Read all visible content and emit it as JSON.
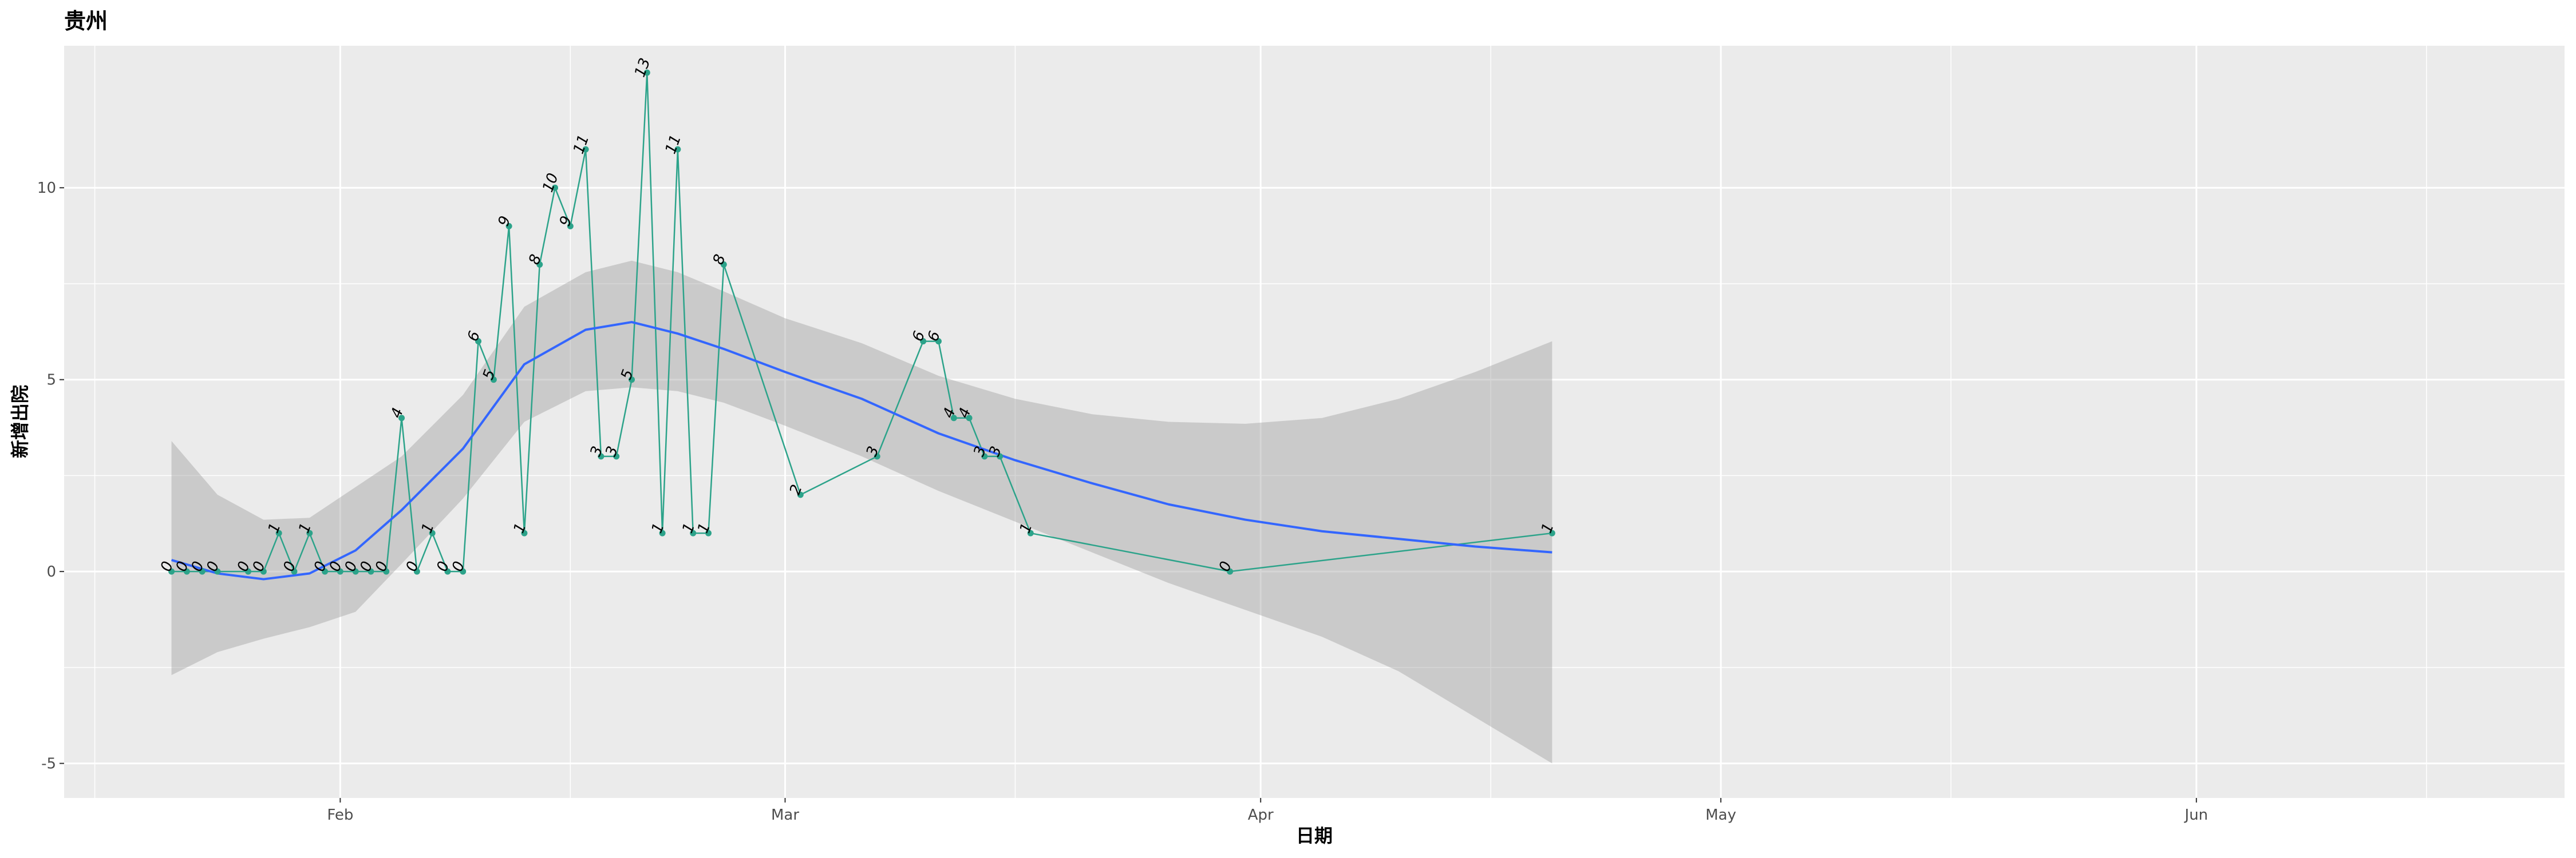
{
  "chart_data": {
    "type": "line",
    "title": "贵州",
    "xlabel": "日期",
    "ylabel": "新增出院",
    "x_ticks": [
      "Feb",
      "Mar",
      "Apr",
      "May",
      "Jun"
    ],
    "y_ticks": [
      -5,
      0,
      5,
      10
    ],
    "xlim": [
      "2020-01-14",
      "2020-06-25"
    ],
    "ylim": [
      -5.9,
      13.7
    ],
    "series": [
      {
        "type": "line+points+labels",
        "color": "#2ca38a",
        "points": [
          {
            "x": "2020-01-21",
            "y": 0
          },
          {
            "x": "2020-01-22",
            "y": 0
          },
          {
            "x": "2020-01-23",
            "y": 0
          },
          {
            "x": "2020-01-24",
            "y": 0
          },
          {
            "x": "2020-01-26",
            "y": 0
          },
          {
            "x": "2020-01-27",
            "y": 0
          },
          {
            "x": "2020-01-28",
            "y": 1
          },
          {
            "x": "2020-01-29",
            "y": 0
          },
          {
            "x": "2020-01-30",
            "y": 1
          },
          {
            "x": "2020-01-31",
            "y": 0
          },
          {
            "x": "2020-02-01",
            "y": 0
          },
          {
            "x": "2020-02-02",
            "y": 0
          },
          {
            "x": "2020-02-03",
            "y": 0
          },
          {
            "x": "2020-02-04",
            "y": 0
          },
          {
            "x": "2020-02-05",
            "y": 4
          },
          {
            "x": "2020-02-06",
            "y": 0
          },
          {
            "x": "2020-02-07",
            "y": 1
          },
          {
            "x": "2020-02-08",
            "y": 0
          },
          {
            "x": "2020-02-09",
            "y": 0
          },
          {
            "x": "2020-02-10",
            "y": 6
          },
          {
            "x": "2020-02-11",
            "y": 5
          },
          {
            "x": "2020-02-12",
            "y": 9
          },
          {
            "x": "2020-02-13",
            "y": 1
          },
          {
            "x": "2020-02-14",
            "y": 8
          },
          {
            "x": "2020-02-15",
            "y": 10
          },
          {
            "x": "2020-02-16",
            "y": 9
          },
          {
            "x": "2020-02-17",
            "y": 11
          },
          {
            "x": "2020-02-18",
            "y": 3
          },
          {
            "x": "2020-02-19",
            "y": 3
          },
          {
            "x": "2020-02-20",
            "y": 5
          },
          {
            "x": "2020-02-21",
            "y": 13
          },
          {
            "x": "2020-02-22",
            "y": 1
          },
          {
            "x": "2020-02-23",
            "y": 11
          },
          {
            "x": "2020-02-24",
            "y": 1
          },
          {
            "x": "2020-02-25",
            "y": 1
          },
          {
            "x": "2020-02-26",
            "y": 8
          },
          {
            "x": "2020-03-02",
            "y": 2
          },
          {
            "x": "2020-03-07",
            "y": 3
          },
          {
            "x": "2020-03-10",
            "y": 6
          },
          {
            "x": "2020-03-11",
            "y": 6
          },
          {
            "x": "2020-03-12",
            "y": 4
          },
          {
            "x": "2020-03-13",
            "y": 4
          },
          {
            "x": "2020-03-14",
            "y": 3
          },
          {
            "x": "2020-03-15",
            "y": 3
          },
          {
            "x": "2020-03-17",
            "y": 1
          },
          {
            "x": "2020-03-30",
            "y": 0
          },
          {
            "x": "2020-04-20",
            "y": 1
          }
        ]
      },
      {
        "type": "smooth",
        "color": "#3366ff",
        "band_color": "#999999",
        "points": [
          {
            "x": "2020-01-21",
            "fit": 0.3,
            "lo": -2.7,
            "hi": 3.4
          },
          {
            "x": "2020-01-24",
            "fit": -0.05,
            "lo": -2.1,
            "hi": 2.0
          },
          {
            "x": "2020-01-27",
            "fit": -0.2,
            "lo": -1.75,
            "hi": 1.35
          },
          {
            "x": "2020-01-30",
            "fit": -0.05,
            "lo": -1.45,
            "hi": 1.4
          },
          {
            "x": "2020-02-02",
            "fit": 0.55,
            "lo": -1.05,
            "hi": 2.2
          },
          {
            "x": "2020-02-05",
            "fit": 1.6,
            "lo": 0.2,
            "hi": 3.0
          },
          {
            "x": "2020-02-09",
            "fit": 3.2,
            "lo": 1.9,
            "hi": 4.6
          },
          {
            "x": "2020-02-13",
            "fit": 5.4,
            "lo": 3.9,
            "hi": 6.9
          },
          {
            "x": "2020-02-17",
            "fit": 6.3,
            "lo": 4.7,
            "hi": 7.8
          },
          {
            "x": "2020-02-20",
            "fit": 6.5,
            "lo": 4.8,
            "hi": 8.1
          },
          {
            "x": "2020-02-23",
            "fit": 6.2,
            "lo": 4.7,
            "hi": 7.8
          },
          {
            "x": "2020-02-26",
            "fit": 5.8,
            "lo": 4.4,
            "hi": 7.3
          },
          {
            "x": "2020-03-01",
            "fit": 5.2,
            "lo": 3.8,
            "hi": 6.6
          },
          {
            "x": "2020-03-06",
            "fit": 4.5,
            "lo": 3.0,
            "hi": 5.95
          },
          {
            "x": "2020-03-11",
            "fit": 3.6,
            "lo": 2.1,
            "hi": 5.1
          },
          {
            "x": "2020-03-16",
            "fit": 2.9,
            "lo": 1.3,
            "hi": 4.5
          },
          {
            "x": "2020-03-21",
            "fit": 2.3,
            "lo": 0.5,
            "hi": 4.1
          },
          {
            "x": "2020-03-26",
            "fit": 1.75,
            "lo": -0.3,
            "hi": 3.9
          },
          {
            "x": "2020-03-31",
            "fit": 1.35,
            "lo": -1.0,
            "hi": 3.85
          },
          {
            "x": "2020-04-05",
            "fit": 1.05,
            "lo": -1.7,
            "hi": 4.0
          },
          {
            "x": "2020-04-10",
            "fit": 0.85,
            "lo": -2.6,
            "hi": 4.5
          },
          {
            "x": "2020-04-15",
            "fit": 0.65,
            "lo": -3.8,
            "hi": 5.2
          },
          {
            "x": "2020-04-20",
            "fit": 0.5,
            "lo": -5.0,
            "hi": 6.0
          }
        ]
      }
    ],
    "grid": true,
    "legend": "none",
    "colors": {
      "panel": "#ebebeb",
      "grid": "#ffffff",
      "line": "#2ca38a",
      "smooth": "#3366ff",
      "band": "#999999"
    }
  }
}
